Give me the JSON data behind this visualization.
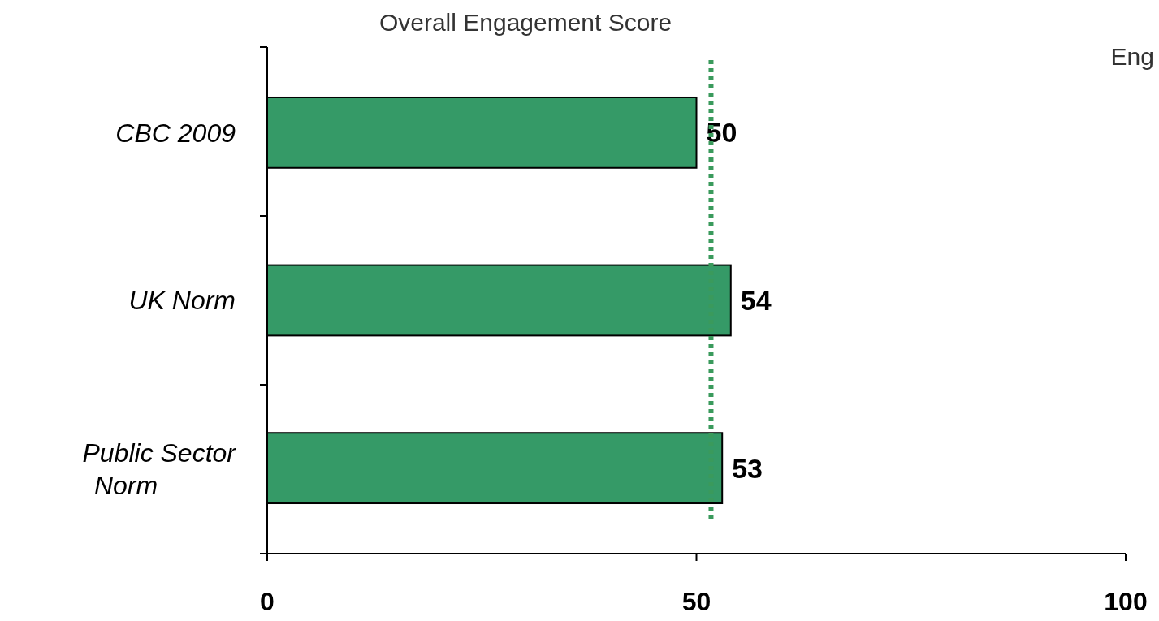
{
  "chart_data": {
    "type": "bar",
    "orientation": "horizontal",
    "title": "Overall Engagement Score",
    "categories": [
      "CBC 2009",
      "UK Norm",
      "Public Sector Norm"
    ],
    "values": [
      50,
      54,
      53
    ],
    "color": "#359a67",
    "data_labels": true,
    "xlim": [
      0,
      100
    ],
    "xticks": [
      0,
      50,
      100
    ],
    "grid": false,
    "ref_lines": [
      {
        "axis": "x",
        "value": 51.7,
        "label": null,
        "color": "#3a9a5c",
        "line_style": "dotted"
      }
    ],
    "annotations": [
      "Eng"
    ]
  }
}
